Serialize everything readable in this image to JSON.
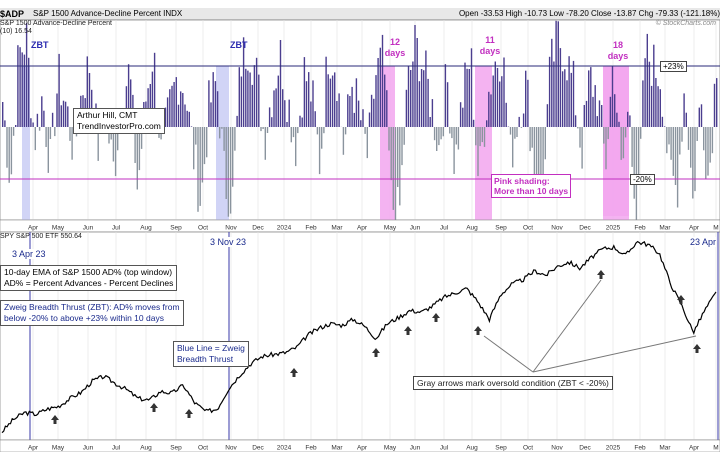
{
  "header": {
    "symbol": "$ADP",
    "name": "S&P 1500 Advance-Decline Percent INDX",
    "values": "Open -33.53 High -10.73 Low -78.20 Close -13.87 Chg -79.33 (-121.18%)"
  },
  "top_panel": {
    "subtitle": "S&P 1500 Advance-Decline Percent",
    "ema_legend": "(10) 16.54",
    "plus_line_label": "+23%",
    "minus_line_label": "-20%",
    "author_line1": "Arthur Hill, CMT",
    "author_line2": "TrendInvestorPro.com",
    "pink_note_line1": "Pink shading:",
    "pink_note_line2": "More than 10 days",
    "zbt_label": "ZBT",
    "pink_windows": [
      {
        "line1": "12",
        "line2": "days"
      },
      {
        "line1": "11",
        "line2": "days"
      },
      {
        "line1": "18",
        "line2": "days"
      }
    ],
    "xaxis_ticks": [
      "Apr",
      "May",
      "Jun",
      "Jul",
      "Aug",
      "Sep",
      "Oct",
      "Nov",
      "Dec",
      "2024",
      "Feb",
      "Mar",
      "Apr",
      "May",
      "Jun",
      "Jul",
      "Aug",
      "Sep",
      "Oct",
      "Nov",
      "Dec",
      "2025",
      "Feb",
      "Mar",
      "Apr",
      "M"
    ]
  },
  "bottom_panel": {
    "legend": "SPY S&P 500 ETF 550.64",
    "date_left": "3 Apr 23",
    "date_mid": "3 Nov 23",
    "date_right": "23 Apr",
    "note_ema_line1": "10-day EMA of S&P 1500 AD% (top window)",
    "note_ema_line2": "AD% = Percent Advances - Percent Declines",
    "note_zbt_line1": "Zweig Breadth Thrust (ZBT): AD% moves from",
    "note_zbt_line2": "below -20% to above +23% within 10 days",
    "note_blue_line1": "Blue Line = Zweig",
    "note_blue_line2": "Breadth Thrust",
    "note_gray": "Gray arrows mark oversold condition (ZBT < -20%)",
    "xaxis_ticks": [
      "Apr",
      "May",
      "Jun",
      "Jul",
      "Aug",
      "Sep",
      "Oct",
      "Nov",
      "Dec",
      "2024",
      "Feb",
      "Mar",
      "Apr",
      "May",
      "Jun",
      "Jul",
      "Aug",
      "Sep",
      "Oct",
      "Nov",
      "Dec",
      "2025",
      "Feb",
      "Mar",
      "Apr",
      "M"
    ]
  },
  "logo": "© StockCharts.com",
  "colors": {
    "bar_positive": "#4b3e8f",
    "bar_negative": "#8a949e",
    "pink_shade": "#f2a6ef",
    "blue_shade": "#c9cdf5",
    "magenta_line": "#c22fc0",
    "navy_line": "#2a2a7a",
    "price_line": "#000000"
  },
  "chart_data": [
    {
      "type": "bar",
      "title": "S&P 1500 Advance-Decline Percent",
      "ylabel": "",
      "ylim": [
        -40,
        45
      ],
      "reference_lines": [
        23,
        -20
      ],
      "time_range": [
        "2023-03",
        "2025-05"
      ],
      "series": [
        {
          "name": "",
          "sampled_values": [
            10,
            -22,
            28,
            35,
            -5,
            12,
            -15,
            20,
            8,
            -10,
            15,
            25,
            -8,
            5,
            -18,
            12,
            22,
            -25,
            10,
            30,
            -12,
            6,
            20,
            15,
            -10,
            -30,
            8,
            18,
            -22,
            -28,
            25,
            33,
            20,
            -5,
            15,
            28,
            10,
            -8,
            22,
            12,
            -15,
            30,
            25,
            -10,
            18,
            5,
            -12,
            20,
            28,
            -30,
            -35,
            15,
            32,
            24,
            10,
            -8,
            20,
            -15,
            12,
            28,
            -22,
            10,
            25,
            30,
            -12,
            5,
            18,
            -18,
            -25,
            22,
            35,
            28,
            15,
            -10,
            20,
            12,
            -15,
            28,
            -20,
            10,
            -40,
            30,
            24,
            20,
            -18,
            -25,
            18,
            -30,
            12,
            -22,
            28
          ]
        }
      ]
    },
    {
      "type": "line",
      "title": "SPY S&P 500 ETF",
      "xlabel": "",
      "ylabel": "",
      "series": [
        {
          "name": "SPY",
          "sampled_values": [
            392,
            406,
            414,
            412,
            418,
            421,
            430,
            437,
            450,
            455,
            447,
            440,
            430,
            428,
            438,
            436,
            445,
            425,
            415,
            418,
            441,
            457,
            470,
            478,
            480,
            482,
            488,
            502,
            510,
            515,
            513,
            520,
            512,
            498,
            515,
            522,
            530,
            528,
            535,
            545,
            550,
            555,
            540,
            520,
            548,
            560,
            565,
            575,
            570,
            580,
            585,
            578,
            590,
            600,
            602,
            592,
            608,
            605,
            595,
            560,
            535,
            505,
            530,
            550
          ]
        }
      ]
    }
  ]
}
